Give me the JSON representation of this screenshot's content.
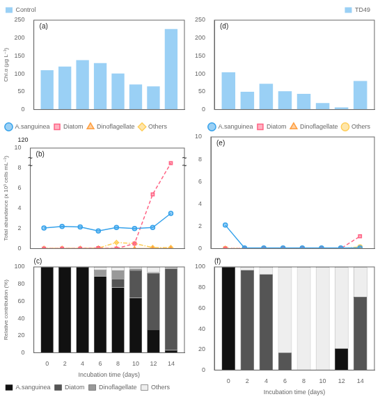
{
  "chart_data": [
    {
      "type": "bar",
      "annotations": [
        "(a)"
      ],
      "y_label": "Chl.α (µg L⁻¹)",
      "x": [
        0,
        2,
        4,
        6,
        8,
        10,
        12,
        14
      ],
      "series": [
        {
          "name": "Control",
          "values": [
            110,
            120,
            138,
            130,
            101,
            70,
            65,
            225
          ]
        }
      ],
      "xlim": [
        -1.5,
        15.5
      ],
      "xticks": [
        0,
        2,
        4,
        6,
        8,
        10,
        12,
        14
      ],
      "ylim": [
        0,
        250
      ],
      "yticks": [
        0,
        50,
        100,
        150,
        200,
        250
      ],
      "grid": false,
      "legend": "upper left",
      "tick_labels": "y"
    },
    {
      "type": "bar",
      "annotations": [
        "(d)"
      ],
      "x": [
        0,
        2,
        4,
        6,
        8,
        10,
        12,
        14
      ],
      "series": [
        {
          "name": "TD49",
          "values": [
            104,
            50,
            72,
            51,
            44,
            18,
            6,
            80
          ]
        }
      ],
      "xlim": [
        -1.5,
        15.5
      ],
      "xticks": [
        0,
        2,
        4,
        6,
        8,
        10,
        12,
        14
      ],
      "ylim": [
        0,
        250
      ],
      "yticks": [
        0,
        50,
        100,
        150,
        200,
        250
      ],
      "grid": false,
      "legend": "upper right",
      "tick_labels": "y"
    },
    {
      "type": "line",
      "annotations": [
        "(b)",
        "120",
        "~",
        "~",
        "~",
        "~"
      ],
      "y_label": "Total abundance (x 10³ cells mL⁻¹)",
      "x": [
        0,
        2,
        4,
        6,
        8,
        10,
        12,
        14
      ],
      "series": [
        {
          "name": "A.sanguinea",
          "values": [
            2.05,
            2.2,
            2.15,
            1.75,
            2.1,
            2.0,
            2.1,
            3.5
          ],
          "marker": "circle",
          "line_style": "solid"
        },
        {
          "name": "Diatom",
          "values": [
            0.0,
            0.0,
            0.0,
            0.05,
            0.0,
            0.5,
            5.4,
            8.5
          ],
          "marker": "square",
          "line_style": "dashed"
        },
        {
          "name": "Dinoflagellate",
          "values": [
            0.0,
            0.0,
            0.0,
            0.0,
            0.0,
            0.0,
            0.0,
            0.0
          ],
          "marker": "triangle",
          "line_style": "solid"
        },
        {
          "name": "Others",
          "values": [
            0.0,
            0.0,
            0.0,
            0.05,
            0.6,
            0.5,
            0.1,
            0.1
          ],
          "marker": "diamond",
          "line_style": "dashdot"
        }
      ],
      "xlim": [
        -1.5,
        15.5
      ],
      "xticks": [
        0,
        2,
        4,
        6,
        8,
        10,
        12,
        14
      ],
      "ylim": [
        0,
        10
      ],
      "yticks": [
        0,
        2,
        4,
        6,
        8,
        10
      ],
      "grid": false,
      "legend": "upper left",
      "tick_labels": "y"
    },
    {
      "type": "line",
      "annotations": [
        "(e)"
      ],
      "x": [
        0,
        2,
        4,
        6,
        8,
        10,
        12,
        14
      ],
      "series": [
        {
          "name": "A.sanguinea",
          "values": [
            2.1,
            0.05,
            0.05,
            0.05,
            0.05,
            0.05,
            0.05,
            0.05
          ],
          "marker": "circle",
          "line_style": "solid"
        },
        {
          "name": "Diatom",
          "values": [
            0.0,
            0.0,
            0.0,
            0.0,
            0.0,
            0.0,
            0.0,
            1.1
          ],
          "marker": "square",
          "line_style": "dashed"
        },
        {
          "name": "Dinoflagellate",
          "values": [
            0.0,
            0.0,
            0.0,
            0.0,
            0.0,
            0.0,
            0.0,
            0.0
          ],
          "marker": "triangle",
          "line_style": "dotted"
        },
        {
          "name": "Others",
          "values": [
            0.0,
            0.0,
            0.0,
            0.0,
            0.0,
            0.0,
            0.0,
            0.15
          ],
          "marker": "circle",
          "line_style": "dashdot"
        }
      ],
      "xlim": [
        -1.5,
        15.5
      ],
      "xticks": [
        0,
        2,
        4,
        6,
        8,
        10,
        12,
        14
      ],
      "ylim": [
        0,
        10
      ],
      "yticks": [
        0,
        2,
        4,
        6,
        8,
        10
      ],
      "grid": false,
      "legend": "upper right",
      "tick_labels": "y"
    },
    {
      "type": "bar",
      "stacked": true,
      "annotations": [
        "(c)"
      ],
      "x_label": "Incubation time (days)",
      "y_label": "Relative contribution (%)",
      "x": [
        0,
        2,
        4,
        6,
        8,
        10,
        12,
        14
      ],
      "series": [
        {
          "name": "A.sanguinea",
          "color": "#111111",
          "values": [
            100,
            100,
            100,
            89,
            76,
            64,
            27,
            3
          ]
        },
        {
          "name": "Diatom",
          "color": "#555555",
          "values": [
            0,
            0,
            0,
            0,
            10,
            32,
            66,
            95
          ]
        },
        {
          "name": "Dinoflagellate",
          "color": "#999999",
          "values": [
            0,
            0,
            0,
            8,
            10,
            2,
            1,
            1
          ]
        },
        {
          "name": "Others",
          "color": "#eeeeee",
          "values": [
            0,
            0,
            0,
            3,
            4,
            2,
            6,
            1
          ]
        }
      ],
      "xlim": [
        -1.5,
        15.5
      ],
      "xticks": [
        0,
        2,
        4,
        6,
        8,
        10,
        12,
        14
      ],
      "ylim": [
        0,
        100
      ],
      "yticks": [
        0,
        20,
        40,
        60,
        80,
        100
      ],
      "grid": false,
      "legend": "lower left"
    },
    {
      "type": "bar",
      "stacked": true,
      "annotations": [
        "(f)"
      ],
      "x_label": "Incubation time (days)",
      "x": [
        0,
        2,
        4,
        6,
        8,
        10,
        12,
        14
      ],
      "series": [
        {
          "name": "A.sanguinea",
          "color": "#111111",
          "values": [
            100,
            0,
            0,
            0,
            0,
            0,
            21,
            0
          ]
        },
        {
          "name": "Diatom",
          "color": "#555555",
          "values": [
            0,
            97,
            93,
            17,
            0,
            0,
            0,
            71
          ]
        },
        {
          "name": "Dinoflagellate",
          "color": "#999999",
          "values": [
            0,
            0,
            0,
            0,
            0,
            0,
            0,
            0
          ]
        },
        {
          "name": "Others",
          "color": "#eeeeee",
          "values": [
            0,
            3,
            7,
            83,
            100,
            100,
            79,
            29
          ]
        }
      ],
      "xlim": [
        -1.5,
        15.5
      ],
      "xticks": [
        0,
        2,
        4,
        6,
        8,
        10,
        12,
        14
      ],
      "ylim": [
        0,
        100
      ],
      "yticks": [
        0,
        20,
        40,
        60,
        80,
        100
      ],
      "grid": false
    }
  ]
}
